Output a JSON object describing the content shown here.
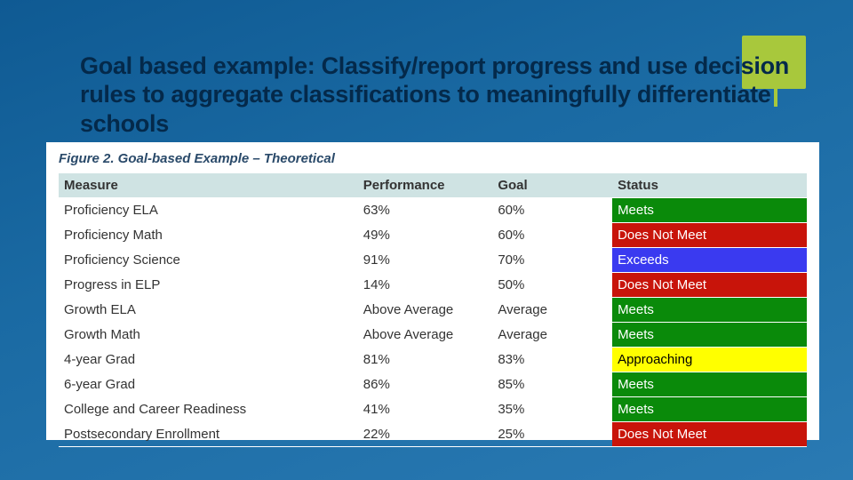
{
  "colors": {
    "slide_bg_from": "#0f5a93",
    "slide_bg_to": "#2a7ab3",
    "accent": "#a8c83c",
    "title": "#04294a",
    "panel_bg": "#ffffff",
    "header_bg": "#cfe3e3",
    "figcap": "#2a4a6a",
    "cell_text": "#333333",
    "status_text_light": "#ffffff",
    "status_text_dark": "#000000"
  },
  "title_fontsize": 27,
  "figcap_fontsize": 15,
  "cell_fontsize": 15,
  "title": "Goal based example: Classify/report progress and use decision rules to aggregate classifications to meaningfully differentiate schools",
  "table": {
    "caption": "Figure 2. Goal-based Example – Theoretical",
    "columns": [
      "Measure",
      "Performance",
      "Goal",
      "Status"
    ],
    "column_widths_pct": [
      40,
      18,
      16,
      26
    ],
    "status_palette": {
      "Meets": {
        "bg": "#0a8a0a",
        "fg": "#ffffff"
      },
      "Does Not Meet": {
        "bg": "#c8140a",
        "fg": "#ffffff"
      },
      "Exceeds": {
        "bg": "#3a3af0",
        "fg": "#ffffff"
      },
      "Approaching": {
        "bg": "#ffff00",
        "fg": "#000000"
      }
    },
    "rows": [
      {
        "measure": "Proficiency ELA",
        "performance": "63%",
        "goal": "60%",
        "status": "Meets"
      },
      {
        "measure": "Proficiency Math",
        "performance": "49%",
        "goal": "60%",
        "status": "Does Not Meet"
      },
      {
        "measure": "Proficiency Science",
        "performance": "91%",
        "goal": "70%",
        "status": "Exceeds"
      },
      {
        "measure": "Progress in ELP",
        "performance": "14%",
        "goal": "50%",
        "status": "Does Not Meet"
      },
      {
        "measure": "Growth ELA",
        "performance": "Above Average",
        "goal": "Average",
        "status": "Meets"
      },
      {
        "measure": "Growth Math",
        "performance": "Above Average",
        "goal": "Average",
        "status": "Meets"
      },
      {
        "measure": "4-year Grad",
        "performance": "81%",
        "goal": "83%",
        "status": "Approaching"
      },
      {
        "measure": "6-year Grad",
        "performance": "86%",
        "goal": "85%",
        "status": "Meets"
      },
      {
        "measure": "College and Career Readiness",
        "performance": "41%",
        "goal": "35%",
        "status": "Meets"
      },
      {
        "measure": "Postsecondary Enrollment",
        "performance": "22%",
        "goal": "25%",
        "status": "Does Not Meet"
      }
    ]
  }
}
